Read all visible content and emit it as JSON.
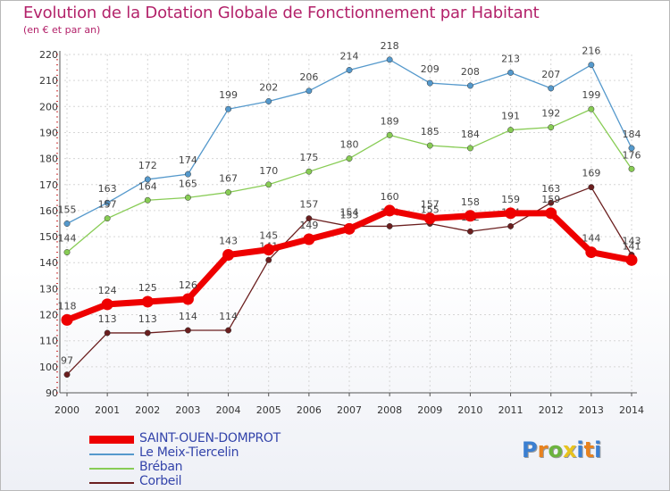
{
  "title": "Evolution de la Dotation Globale de Fonctionnement par Habitant",
  "subtitle": "(en € et par an)",
  "logo": {
    "letters": [
      "P",
      "r",
      "o",
      "x",
      "i",
      "t",
      "i"
    ],
    "colors": [
      "#3b7fd1",
      "#e8821e",
      "#6cb33e",
      "#e8c31e",
      "#3b7fd1",
      "#e8821e",
      "#3b7fd1"
    ]
  },
  "chart_data": {
    "type": "line",
    "x": [
      2000,
      2001,
      2002,
      2003,
      2004,
      2005,
      2006,
      2007,
      2008,
      2009,
      2010,
      2011,
      2012,
      2013,
      2014
    ],
    "ylim": [
      90,
      220
    ],
    "yticks": [
      90,
      100,
      110,
      120,
      130,
      140,
      150,
      160,
      170,
      180,
      190,
      200,
      210,
      220
    ],
    "grid": true,
    "legend_position": "bottom-left",
    "series": [
      {
        "name": "SAINT-OUEN-DOMPROT",
        "color": "#ee0000",
        "emphasis": true,
        "values": [
          118,
          124,
          125,
          126,
          143,
          145,
          149,
          153,
          160,
          157,
          158,
          159,
          159,
          144,
          141
        ],
        "labels": [
          "118",
          "124",
          "125",
          "126",
          "143",
          "145",
          "149",
          "153",
          "160",
          "157",
          "158",
          "159",
          "159",
          "144",
          "141"
        ]
      },
      {
        "name": "Le Meix-Tiercelin",
        "color": "#5599cc",
        "values": [
          155,
          163,
          172,
          174,
          199,
          202,
          206,
          214,
          218,
          209,
          208,
          213,
          207,
          216,
          184
        ],
        "labels": [
          "155",
          "163",
          "172",
          "174",
          "199",
          "202",
          "206",
          "214",
          "218",
          "209",
          "208",
          "213",
          "207",
          "216",
          "184"
        ]
      },
      {
        "name": "Bréban",
        "color": "#88cc55",
        "values": [
          144,
          157,
          164,
          165,
          167,
          170,
          175,
          180,
          189,
          185,
          184,
          191,
          192,
          199,
          176
        ],
        "labels": [
          "144",
          "157",
          "164",
          "165",
          "167",
          "170",
          "175",
          "180",
          "189",
          "185",
          "184",
          "191",
          "192",
          "199",
          "176"
        ]
      },
      {
        "name": "Corbeil",
        "color": "#6b1f1f",
        "values": [
          97,
          113,
          113,
          114,
          114,
          141,
          157,
          154,
          154,
          155,
          152,
          154,
          163,
          169,
          143
        ],
        "labels": [
          "97",
          "113",
          "113",
          "114",
          "114",
          "141",
          "157",
          "154",
          "154",
          "155",
          "152",
          "154",
          "163",
          "169",
          "143"
        ]
      }
    ]
  }
}
